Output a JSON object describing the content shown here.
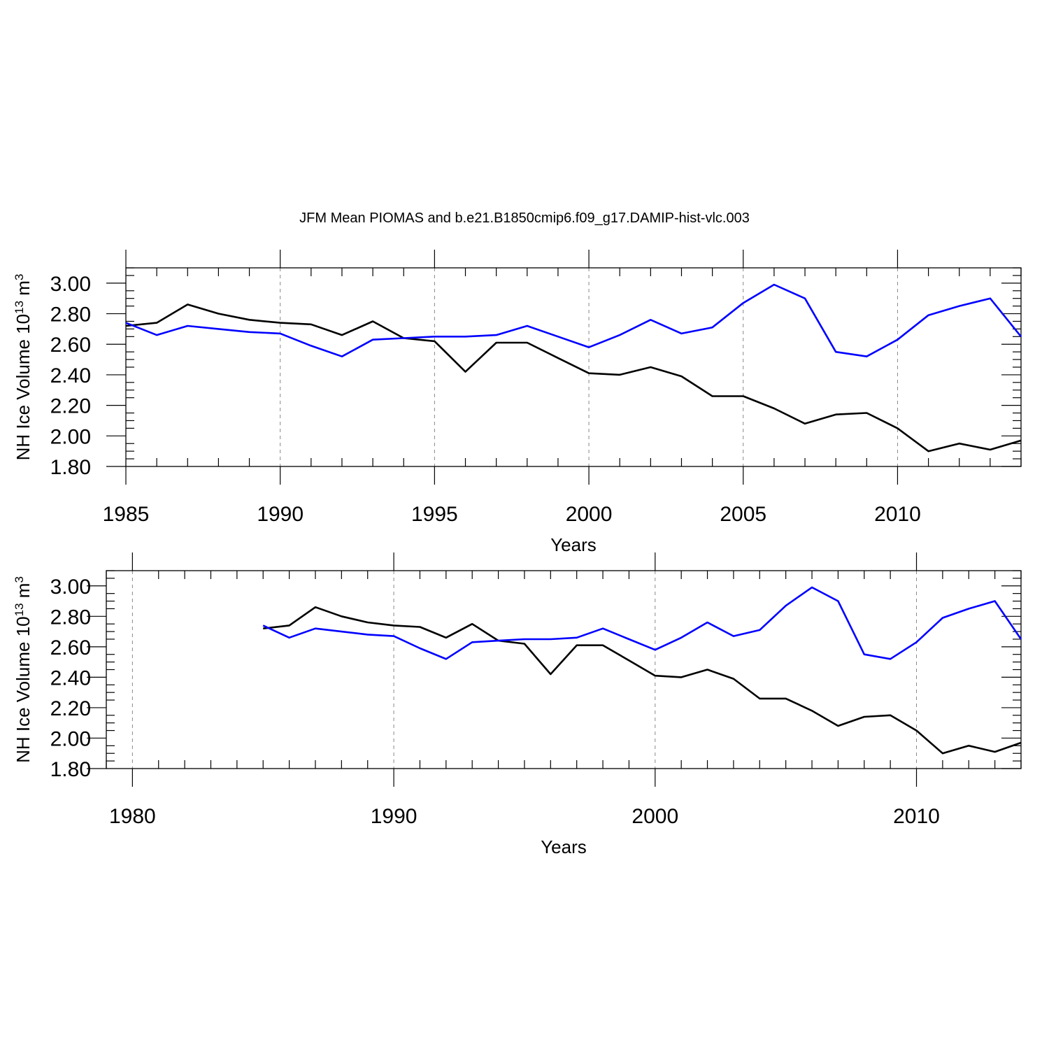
{
  "title": "JFM Mean PIOMAS and b.e21.B1850cmip6.f09_g17.DAMIP-hist-vlc.003",
  "colors": {
    "PIOMAS": "#000000",
    "DAMIP-hist-vlc.003": "#0000ff"
  },
  "chart_data": [
    {
      "type": "line",
      "xlabel": "Years",
      "ylabel": "NH Ice Volume 10",
      "ylabel_sup": "13",
      "ylabel_unit": " m",
      "ylabel_unit_sup": "3",
      "xlim": [
        1985,
        2014
      ],
      "ylim": [
        1.8,
        3.1
      ],
      "x_major_ticks": [
        1985,
        1990,
        1995,
        2000,
        2005,
        2010
      ],
      "x_tick_labels": [
        "1985",
        "1990",
        "1995",
        "2000",
        "2005",
        "2010"
      ],
      "y_major_ticks": [
        1.8,
        2.0,
        2.2,
        2.4,
        2.6,
        2.8,
        3.0
      ],
      "y_tick_labels": [
        "1.80",
        "2.00",
        "2.20",
        "2.40",
        "2.60",
        "2.80",
        "3.00"
      ],
      "grid": "vertical dashed at major x ticks",
      "x": [
        1985,
        1986,
        1987,
        1988,
        1989,
        1990,
        1991,
        1992,
        1993,
        1994,
        1995,
        1996,
        1997,
        1998,
        1999,
        2000,
        2001,
        2002,
        2003,
        2004,
        2005,
        2006,
        2007,
        2008,
        2009,
        2010,
        2011,
        2012,
        2013,
        2014
      ],
      "series": [
        {
          "color": "#000000",
          "values": [
            2.72,
            2.74,
            2.86,
            2.8,
            2.76,
            2.74,
            2.73,
            2.66,
            2.75,
            2.64,
            2.62,
            2.42,
            2.61,
            2.61,
            2.51,
            2.41,
            2.4,
            2.45,
            2.39,
            2.26,
            2.26,
            2.18,
            2.08,
            2.14,
            2.15,
            2.05,
            1.9,
            1.95,
            1.91,
            1.97
          ]
        },
        {
          "color": "#0000ff",
          "values": [
            2.74,
            2.66,
            2.72,
            2.7,
            2.68,
            2.67,
            2.59,
            2.52,
            2.63,
            2.64,
            2.65,
            2.65,
            2.66,
            2.72,
            2.65,
            2.58,
            2.66,
            2.76,
            2.67,
            2.71,
            2.87,
            2.99,
            2.9,
            2.55,
            2.52,
            2.63,
            2.79,
            2.85,
            2.9,
            2.65
          ]
        }
      ]
    },
    {
      "type": "line",
      "xlabel": "Years",
      "ylabel": "NH Ice Volume 10",
      "ylabel_sup": "13",
      "ylabel_unit": " m",
      "ylabel_unit_sup": "3",
      "xlim": [
        1979,
        2014
      ],
      "ylim": [
        1.8,
        3.1
      ],
      "x_major_ticks": [
        1980,
        1990,
        2000,
        2010
      ],
      "x_tick_labels": [
        "1980",
        "1990",
        "2000",
        "2010"
      ],
      "y_major_ticks": [
        1.8,
        2.0,
        2.2,
        2.4,
        2.6,
        2.8,
        3.0
      ],
      "y_tick_labels": [
        "1.80",
        "2.00",
        "2.20",
        "2.40",
        "2.60",
        "2.80",
        "3.00"
      ],
      "grid": "vertical dashed at major x ticks",
      "x": [
        1985,
        1986,
        1987,
        1988,
        1989,
        1990,
        1991,
        1992,
        1993,
        1994,
        1995,
        1996,
        1997,
        1998,
        1999,
        2000,
        2001,
        2002,
        2003,
        2004,
        2005,
        2006,
        2007,
        2008,
        2009,
        2010,
        2011,
        2012,
        2013,
        2014
      ],
      "series": [
        {
          "color": "#000000",
          "values": [
            2.72,
            2.74,
            2.86,
            2.8,
            2.76,
            2.74,
            2.73,
            2.66,
            2.75,
            2.64,
            2.62,
            2.42,
            2.61,
            2.61,
            2.51,
            2.41,
            2.4,
            2.45,
            2.39,
            2.26,
            2.26,
            2.18,
            2.08,
            2.14,
            2.15,
            2.05,
            1.9,
            1.95,
            1.91,
            1.97
          ]
        },
        {
          "color": "#0000ff",
          "values": [
            2.74,
            2.66,
            2.72,
            2.7,
            2.68,
            2.67,
            2.59,
            2.52,
            2.63,
            2.64,
            2.65,
            2.65,
            2.66,
            2.72,
            2.65,
            2.58,
            2.66,
            2.76,
            2.67,
            2.71,
            2.87,
            2.99,
            2.9,
            2.55,
            2.52,
            2.63,
            2.79,
            2.85,
            2.9,
            2.65
          ]
        }
      ]
    }
  ]
}
